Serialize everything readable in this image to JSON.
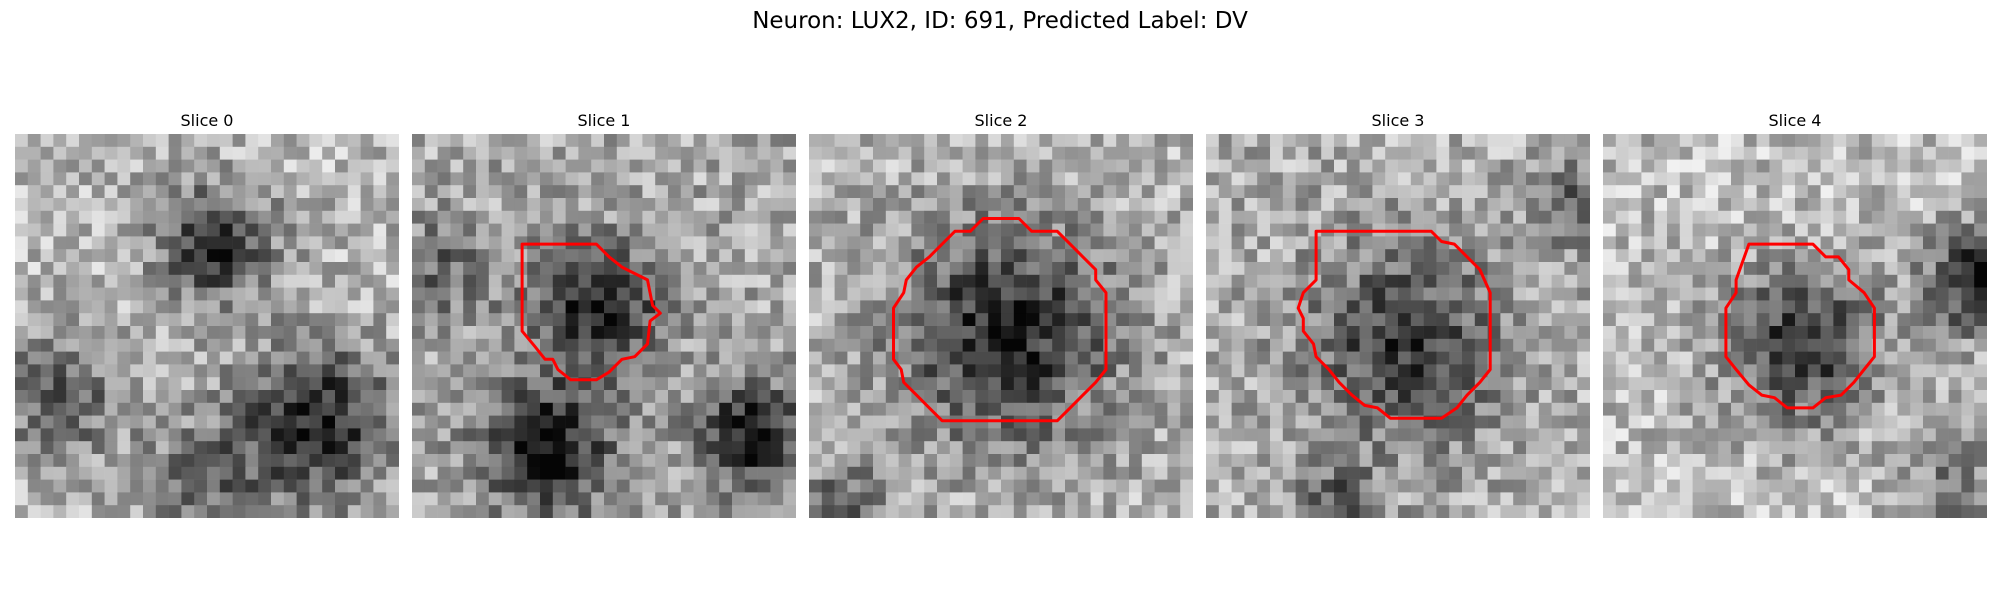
{
  "figure": {
    "title": "Neuron: LUX2, ID: 691, Predicted Label: DV",
    "contour_color": "#ff0000"
  },
  "slices": [
    {
      "title": "Slice 0",
      "has_contour": false
    },
    {
      "title": "Slice 1",
      "has_contour": true
    },
    {
      "title": "Slice 2",
      "has_contour": true
    },
    {
      "title": "Slice 3",
      "has_contour": true
    },
    {
      "title": "Slice 4",
      "has_contour": true
    }
  ]
}
